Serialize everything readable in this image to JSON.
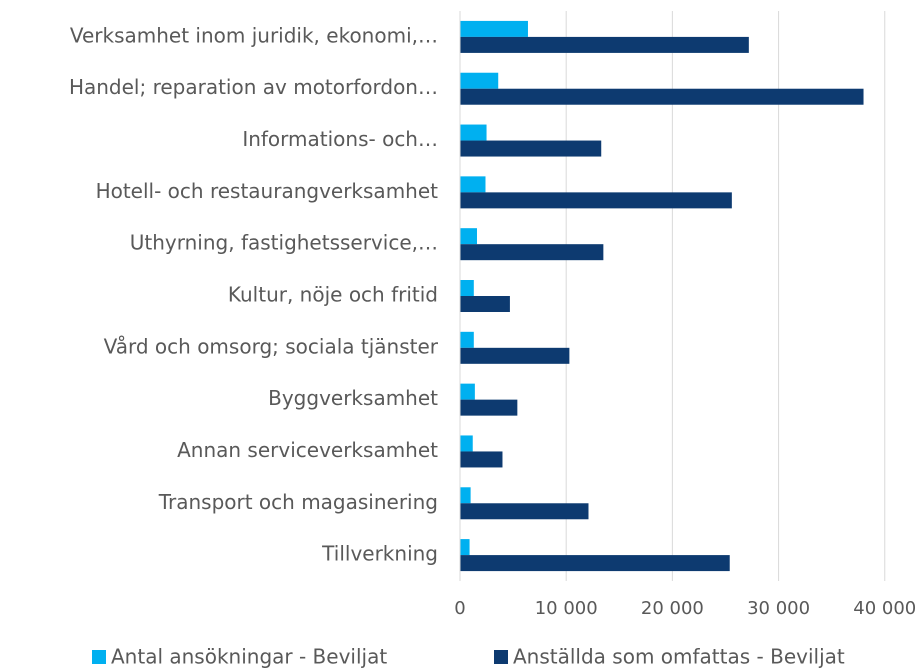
{
  "chart_data": {
    "type": "hbar",
    "categories": [
      "Verksamhet inom juridik, ekonomi,…",
      "Handel; reparation av motorfordon…",
      "Informations- och…",
      "Hotell- och restaurangverksamhet",
      "Uthyrning, fastighetsservice,…",
      "Kultur, nöje och fritid",
      "Vård och omsorg; sociala tjänster",
      "Byggverksamhet",
      "Annan serviceverksamhet",
      "Transport och magasinering",
      "Tillverkning"
    ],
    "series": [
      {
        "name": "Antal ansökningar - Beviljat",
        "color": "#00b0f0",
        "values": [
          6400,
          3600,
          2500,
          2400,
          1600,
          1300,
          1300,
          1400,
          1200,
          1000,
          900
        ]
      },
      {
        "name": "Anställda som omfattas - Beviljat",
        "color": "#0d3a70",
        "values": [
          27200,
          38000,
          13300,
          25600,
          13500,
          4700,
          10300,
          5400,
          4000,
          12100,
          25400
        ]
      }
    ],
    "xlim": [
      0,
      42000
    ],
    "xticks": [
      0,
      {
        "value": 10000,
        "label": "10 000"
      },
      {
        "value": 20000,
        "label": "20 000"
      },
      {
        "value": 30000,
        "label": "30 000"
      },
      {
        "value": 40000,
        "label": "40 000"
      }
    ],
    "grid": true
  }
}
